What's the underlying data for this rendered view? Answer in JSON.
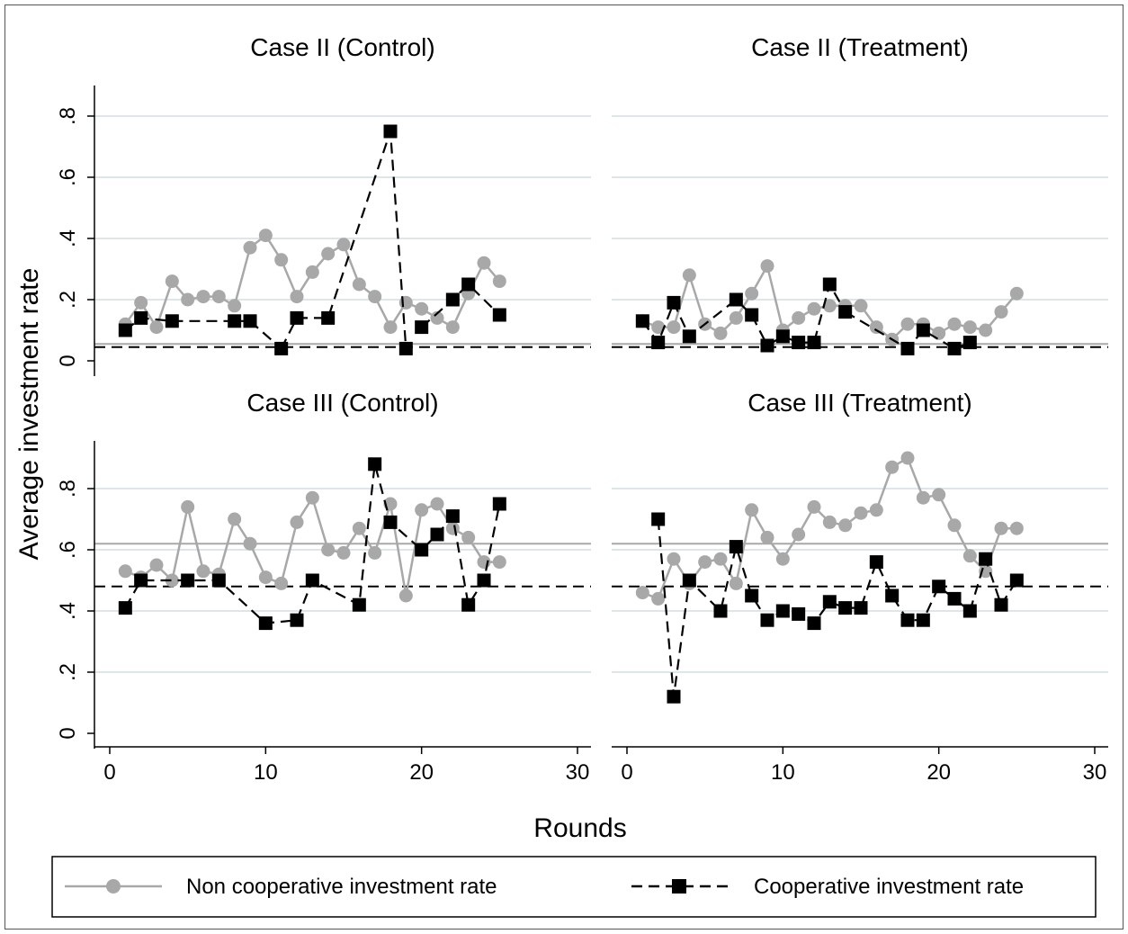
{
  "chart_data": {
    "type": "line",
    "xlabel": "Rounds",
    "ylabel": "Average investment rate",
    "x_ticks": [
      "0",
      "10",
      "20",
      "30"
    ],
    "y_ticks": [
      "0",
      ".2",
      ".4",
      ".6",
      ".8"
    ],
    "xlim": [
      0,
      30
    ],
    "ylim": [
      0,
      0.95
    ],
    "grid": true,
    "legend_position": "bottom",
    "legend": [
      {
        "label": "Non cooperative investment rate",
        "color": "#a8a8a8",
        "marker": "circle",
        "line": "solid"
      },
      {
        "label": "Cooperative investment rate",
        "color": "#000000",
        "marker": "square",
        "line": "dashed"
      }
    ],
    "panels": [
      {
        "title": "Case II (Control)",
        "hline_noncoop": 0.055,
        "hline_coop": 0.045,
        "noncoop": {
          "x": [
            1,
            2,
            3,
            4,
            5,
            6,
            7,
            8,
            9,
            10,
            11,
            12,
            13,
            14,
            15,
            16,
            17,
            18,
            19,
            20,
            21,
            22,
            23,
            24,
            25
          ],
          "y": [
            0.12,
            0.19,
            0.11,
            0.26,
            0.2,
            0.21,
            0.21,
            0.18,
            0.37,
            0.41,
            0.33,
            0.21,
            0.29,
            0.35,
            0.38,
            0.25,
            0.21,
            0.11,
            0.19,
            0.17,
            0.14,
            0.11,
            0.22,
            0.32,
            0.26
          ]
        },
        "coop": {
          "segments": [
            {
              "x": [
                1,
                2,
                4,
                8,
                9
              ],
              "y": [
                0.1,
                0.14,
                0.13,
                0.13,
                0.13
              ]
            },
            {
              "x": [
                9,
                11
              ],
              "y": [
                0.13,
                0.04
              ]
            },
            {
              "x": [
                11,
                12
              ],
              "y": [
                0.04,
                0.14
              ]
            },
            {
              "x": [
                12,
                14,
                18,
                19
              ],
              "y": [
                0.14,
                0.14,
                0.75,
                0.04
              ]
            },
            {
              "x": [
                20,
                22,
                23,
                25
              ],
              "y": [
                0.11,
                0.2,
                0.25,
                0.15
              ]
            }
          ]
        }
      },
      {
        "title": "Case II (Treatment)",
        "hline_noncoop": 0.055,
        "hline_coop": 0.045,
        "noncoop": {
          "x": [
            1,
            2,
            3,
            4,
            5,
            6,
            7,
            8,
            9,
            10,
            11,
            12,
            13,
            14,
            15,
            16,
            17,
            18,
            19,
            20,
            21,
            22,
            23,
            24,
            25
          ],
          "y": [
            0.13,
            0.11,
            0.11,
            0.28,
            0.12,
            0.09,
            0.14,
            0.22,
            0.31,
            0.1,
            0.14,
            0.17,
            0.18,
            0.18,
            0.18,
            0.11,
            0.07,
            0.12,
            0.12,
            0.09,
            0.12,
            0.11,
            0.1,
            0.16,
            0.22
          ]
        },
        "coop": {
          "segments": [
            {
              "x": [
                1,
                2,
                3,
                4,
                7,
                8,
                9,
                10,
                11,
                12,
                13,
                14
              ],
              "y": [
                0.13,
                0.06,
                0.19,
                0.08,
                0.2,
                0.15,
                0.05,
                0.08,
                0.06,
                0.06,
                0.25,
                0.16
              ]
            },
            {
              "x": [
                14,
                18,
                19,
                21,
                22
              ],
              "y": [
                0.16,
                0.04,
                0.1,
                0.04,
                0.06
              ]
            }
          ]
        }
      },
      {
        "title": "Case III (Control)",
        "hline_noncoop": 0.62,
        "hline_coop": 0.48,
        "noncoop": {
          "x": [
            1,
            2,
            3,
            4,
            5,
            6,
            7,
            8,
            9,
            10,
            11,
            12,
            13,
            14,
            15,
            16,
            17,
            18,
            19,
            20,
            21,
            22,
            23,
            24,
            25
          ],
          "y": [
            0.53,
            0.51,
            0.55,
            0.5,
            0.74,
            0.53,
            0.52,
            0.7,
            0.62,
            0.51,
            0.49,
            0.69,
            0.77,
            0.6,
            0.59,
            0.67,
            0.59,
            0.75,
            0.45,
            0.73,
            0.75,
            0.67,
            0.64,
            0.56,
            0.56
          ]
        },
        "coop": {
          "segments": [
            {
              "x": [
                1,
                2,
                5,
                7,
                10,
                12,
                13,
                16,
                17,
                18,
                20,
                21,
                22,
                23,
                24,
                25
              ],
              "y": [
                0.41,
                0.5,
                0.5,
                0.5,
                0.36,
                0.37,
                0.5,
                0.42,
                0.88,
                0.69,
                0.6,
                0.65,
                0.71,
                0.42,
                0.5,
                0.75
              ]
            }
          ]
        }
      },
      {
        "title": "Case III (Treatment)",
        "hline_noncoop": 0.62,
        "hline_coop": 0.48,
        "noncoop": {
          "x": [
            1,
            2,
            3,
            4,
            5,
            6,
            7,
            8,
            9,
            10,
            11,
            12,
            13,
            14,
            15,
            16,
            17,
            18,
            19,
            20,
            21,
            22,
            23,
            24,
            25
          ],
          "y": [
            0.46,
            0.44,
            0.57,
            0.49,
            0.56,
            0.57,
            0.49,
            0.73,
            0.64,
            0.57,
            0.65,
            0.74,
            0.69,
            0.68,
            0.72,
            0.73,
            0.87,
            0.9,
            0.77,
            0.78,
            0.68,
            0.58,
            0.53,
            0.67,
            0.67
          ]
        },
        "coop": {
          "segments": [
            {
              "x": [
                2,
                3,
                4,
                6,
                7,
                8,
                9,
                10,
                11,
                12,
                13,
                14,
                15,
                16,
                17,
                18,
                19,
                20,
                21,
                22,
                23,
                24,
                25
              ],
              "y": [
                0.7,
                0.12,
                0.5,
                0.4,
                0.61,
                0.45,
                0.37,
                0.4,
                0.39,
                0.36,
                0.43,
                0.41,
                0.41,
                0.56,
                0.45,
                0.37,
                0.37,
                0.48,
                0.44,
                0.4,
                0.57,
                0.42,
                0.5
              ]
            }
          ]
        }
      }
    ]
  }
}
